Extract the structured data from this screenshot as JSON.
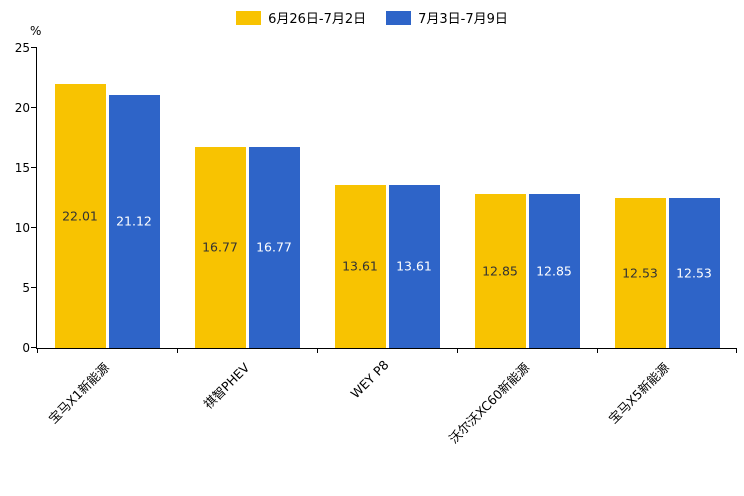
{
  "chart_data": {
    "type": "bar",
    "title": "",
    "xlabel": "",
    "ylabel": "%",
    "ylim": [
      0,
      25
    ],
    "ytick_step": 5,
    "grid": false,
    "legend_position": "top-center",
    "axis_color": "#000000",
    "categories": [
      "宝马X1新能源",
      "祺智PHEV",
      "WEY P8",
      "沃尔沃XC60新能源",
      "宝马X5新能源"
    ],
    "series": [
      {
        "name": "6月26日-7月2日",
        "color": "#F8C301",
        "label_color": "#333333",
        "values": [
          22.01,
          16.77,
          13.61,
          12.85,
          12.53
        ]
      },
      {
        "name": "7月3日-7月9日",
        "color": "#2E64C8",
        "label_color": "#FFFFFF",
        "values": [
          21.12,
          16.77,
          13.61,
          12.85,
          12.53
        ]
      }
    ]
  }
}
